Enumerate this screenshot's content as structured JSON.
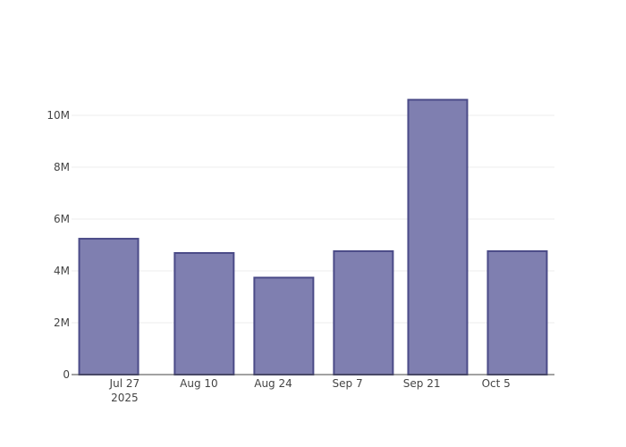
{
  "chart_data": {
    "type": "bar",
    "x": [
      "2025-07-24",
      "2025-08-11",
      "2025-08-26",
      "2025-09-10",
      "2025-09-24",
      "2025-10-09"
    ],
    "values": [
      5240000,
      4690000,
      3740000,
      4760000,
      10600000,
      4760000
    ],
    "color": "#7f7fb0",
    "edge_color": "#4b4b88",
    "xlim": [
      "2025-07-17",
      "2025-10-16"
    ],
    "xticks": [
      {
        "value": "2025-07-27",
        "label": "Jul 27"
      },
      {
        "value": "2025-08-10",
        "label": "Aug 10"
      },
      {
        "value": "2025-08-24",
        "label": "Aug 24"
      },
      {
        "value": "2025-09-07",
        "label": "Sep 7"
      },
      {
        "value": "2025-09-21",
        "label": "Sep 21"
      },
      {
        "value": "2025-10-05",
        "label": "Oct 5"
      }
    ],
    "x_year_label": "2025",
    "ylim": [
      0,
      11000000
    ],
    "yticks": [
      0,
      {
        "value": 2000000,
        "label": "2M"
      },
      {
        "value": 4000000,
        "label": "4M"
      },
      {
        "value": 6000000,
        "label": "6M"
      },
      {
        "value": 8000000,
        "label": "8M"
      },
      {
        "value": 10000000,
        "label": "10M"
      }
    ],
    "grid": true
  }
}
